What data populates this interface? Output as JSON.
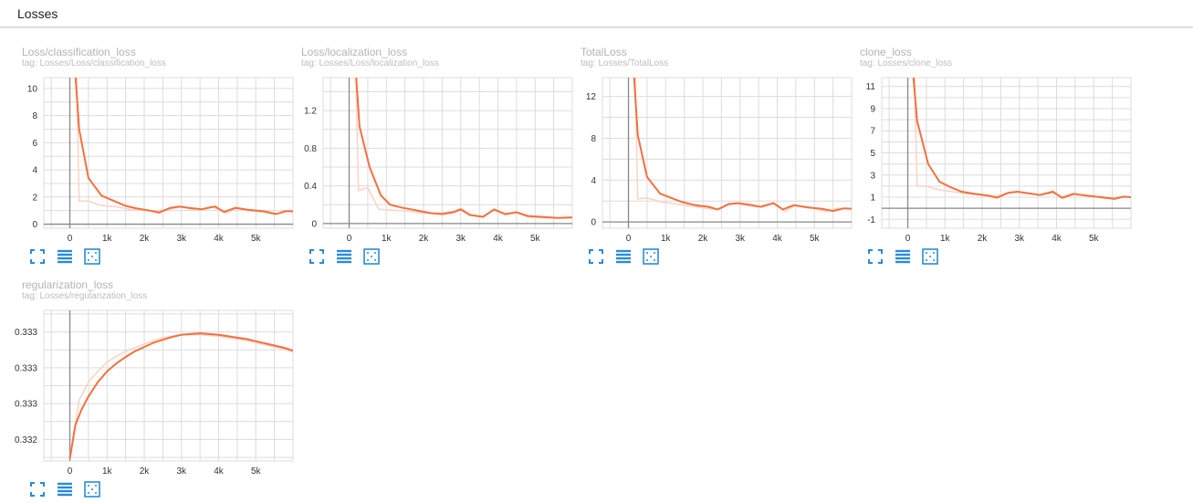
{
  "header": {
    "title": "Losses"
  },
  "colors": {
    "line": "#f4703d",
    "line_raw": "#fbd3c3",
    "grid": "#dcdcdc",
    "axis": "#888888",
    "icon": "#2a8ad8"
  },
  "icons": [
    "fit-domain-icon",
    "data-table-icon",
    "log-scale-icon"
  ],
  "cards": [
    {
      "title": "Loss/classification_loss",
      "tag": "tag: Losses/Loss/classification_loss",
      "chart_data": {
        "type": "line",
        "xlim": [
          -700,
          6000
        ],
        "ylim": [
          -0.3,
          10.8
        ],
        "xticks": [
          0,
          1000,
          2000,
          3000,
          4000,
          5000
        ],
        "xtick_labels": [
          "0",
          "1k",
          "2k",
          "3k",
          "4k",
          "5k"
        ],
        "yticks": [
          0,
          2,
          4,
          6,
          8,
          10
        ],
        "ytick_labels": [
          "0",
          "2",
          "4",
          "6",
          "8",
          "10"
        ],
        "raw": [
          [
            180,
            11
          ],
          [
            250,
            1.7
          ],
          [
            500,
            1.7
          ],
          [
            800,
            1.4
          ],
          [
            1200,
            1.3
          ],
          [
            1600,
            1.1
          ],
          [
            2000,
            1.0
          ],
          [
            2400,
            1.0
          ],
          [
            2700,
            1.1
          ],
          [
            3000,
            1.3
          ],
          [
            3400,
            1.0
          ],
          [
            3800,
            1.3
          ],
          [
            4200,
            0.8
          ],
          [
            4500,
            1.2
          ],
          [
            4800,
            1.0
          ],
          [
            5200,
            0.9
          ],
          [
            5500,
            0.7
          ],
          [
            5800,
            1.0
          ],
          [
            6000,
            1.0
          ]
        ],
        "smoothed": [
          [
            150,
            11
          ],
          [
            250,
            7.0
          ],
          [
            500,
            3.4
          ],
          [
            850,
            2.1
          ],
          [
            1200,
            1.7
          ],
          [
            1500,
            1.35
          ],
          [
            1800,
            1.15
          ],
          [
            2150,
            1.0
          ],
          [
            2400,
            0.85
          ],
          [
            2700,
            1.2
          ],
          [
            2950,
            1.3
          ],
          [
            3200,
            1.2
          ],
          [
            3550,
            1.1
          ],
          [
            3900,
            1.3
          ],
          [
            4150,
            0.9
          ],
          [
            4450,
            1.2
          ],
          [
            4800,
            1.05
          ],
          [
            5200,
            0.95
          ],
          [
            5550,
            0.75
          ],
          [
            5800,
            0.95
          ],
          [
            6000,
            0.95
          ]
        ]
      }
    },
    {
      "title": "Loss/localization_loss",
      "tag": "tag: Losses/Loss/localization_loss",
      "chart_data": {
        "type": "line",
        "xlim": [
          -700,
          6000
        ],
        "ylim": [
          -0.05,
          1.55
        ],
        "xticks": [
          0,
          1000,
          2000,
          3000,
          4000,
          5000
        ],
        "xtick_labels": [
          "0",
          "1k",
          "2k",
          "3k",
          "4k",
          "5k"
        ],
        "yticks": [
          0,
          0.4,
          0.8,
          1.2
        ],
        "ytick_labels": [
          "0",
          "0.4",
          "0.8",
          "1.2"
        ],
        "raw": [
          [
            180,
            1.6
          ],
          [
            250,
            0.35
          ],
          [
            500,
            0.38
          ],
          [
            800,
            0.15
          ],
          [
            1200,
            0.14
          ],
          [
            1600,
            0.13
          ],
          [
            2000,
            0.11
          ],
          [
            2400,
            0.11
          ],
          [
            2800,
            0.13
          ],
          [
            3000,
            0.16
          ],
          [
            3300,
            0.09
          ],
          [
            3600,
            0.08
          ],
          [
            3900,
            0.14
          ],
          [
            4200,
            0.09
          ],
          [
            4500,
            0.12
          ],
          [
            4800,
            0.07
          ],
          [
            5200,
            0.06
          ],
          [
            5600,
            0.06
          ],
          [
            6000,
            0.06
          ]
        ],
        "smoothed": [
          [
            180,
            1.6
          ],
          [
            280,
            1.03
          ],
          [
            550,
            0.6
          ],
          [
            850,
            0.3
          ],
          [
            1100,
            0.2
          ],
          [
            1400,
            0.17
          ],
          [
            1800,
            0.14
          ],
          [
            2200,
            0.11
          ],
          [
            2500,
            0.1
          ],
          [
            2800,
            0.12
          ],
          [
            3000,
            0.15
          ],
          [
            3250,
            0.09
          ],
          [
            3600,
            0.07
          ],
          [
            3900,
            0.15
          ],
          [
            4200,
            0.1
          ],
          [
            4500,
            0.12
          ],
          [
            4800,
            0.08
          ],
          [
            5200,
            0.07
          ],
          [
            5600,
            0.06
          ],
          [
            6000,
            0.065
          ]
        ]
      }
    },
    {
      "title": "TotalLoss",
      "tag": "tag: Losses/TotalLoss",
      "chart_data": {
        "type": "line",
        "xlim": [
          -700,
          6000
        ],
        "ylim": [
          -0.6,
          13.8
        ],
        "xticks": [
          0,
          1000,
          2000,
          3000,
          4000,
          5000
        ],
        "xtick_labels": [
          "0",
          "1k",
          "2k",
          "3k",
          "4k",
          "5k"
        ],
        "yticks": [
          0,
          4,
          8,
          12
        ],
        "ytick_labels": [
          "0",
          "4",
          "8",
          "12"
        ],
        "raw": [
          [
            180,
            14
          ],
          [
            250,
            2.2
          ],
          [
            500,
            2.3
          ],
          [
            900,
            1.9
          ],
          [
            1300,
            1.7
          ],
          [
            1700,
            1.5
          ],
          [
            2100,
            1.3
          ],
          [
            2400,
            1.2
          ],
          [
            2700,
            1.8
          ],
          [
            3000,
            1.7
          ],
          [
            3300,
            1.5
          ],
          [
            3600,
            1.4
          ],
          [
            3900,
            1.8
          ],
          [
            4200,
            1.0
          ],
          [
            4500,
            1.6
          ],
          [
            4900,
            1.4
          ],
          [
            5300,
            1.0
          ],
          [
            5600,
            1.3
          ],
          [
            6000,
            1.3
          ]
        ],
        "smoothed": [
          [
            150,
            14
          ],
          [
            250,
            8.3
          ],
          [
            500,
            4.3
          ],
          [
            850,
            2.7
          ],
          [
            1150,
            2.3
          ],
          [
            1450,
            1.9
          ],
          [
            1800,
            1.6
          ],
          [
            2150,
            1.45
          ],
          [
            2400,
            1.2
          ],
          [
            2700,
            1.7
          ],
          [
            2950,
            1.8
          ],
          [
            3250,
            1.65
          ],
          [
            3550,
            1.45
          ],
          [
            3900,
            1.8
          ],
          [
            4150,
            1.2
          ],
          [
            4450,
            1.6
          ],
          [
            4800,
            1.4
          ],
          [
            5200,
            1.25
          ],
          [
            5500,
            1.05
          ],
          [
            5800,
            1.3
          ],
          [
            6000,
            1.25
          ]
        ]
      }
    },
    {
      "title": "clone_loss",
      "tag": "tag: Losses/clone_loss",
      "chart_data": {
        "type": "line",
        "xlim": [
          -700,
          6000
        ],
        "ylim": [
          -1.8,
          11.8
        ],
        "xticks": [
          0,
          1000,
          2000,
          3000,
          4000,
          5000
        ],
        "xtick_labels": [
          "0",
          "1k",
          "2k",
          "3k",
          "4k",
          "5k"
        ],
        "yticks": [
          -1,
          1,
          3,
          5,
          7,
          9,
          11
        ],
        "ytick_labels": [
          "-1",
          "1",
          "3",
          "5",
          "7",
          "9",
          "11"
        ],
        "raw": [
          [
            180,
            12
          ],
          [
            250,
            2.0
          ],
          [
            500,
            2.0
          ],
          [
            800,
            1.7
          ],
          [
            1200,
            1.5
          ],
          [
            1600,
            1.3
          ],
          [
            2000,
            1.2
          ],
          [
            2400,
            1.1
          ],
          [
            2700,
            1.4
          ],
          [
            3000,
            1.5
          ],
          [
            3300,
            1.3
          ],
          [
            3600,
            1.2
          ],
          [
            3900,
            1.4
          ],
          [
            4200,
            0.9
          ],
          [
            4500,
            1.3
          ],
          [
            4900,
            1.1
          ],
          [
            5300,
            0.9
          ],
          [
            5600,
            1.0
          ],
          [
            6000,
            1.0
          ]
        ],
        "smoothed": [
          [
            150,
            12
          ],
          [
            250,
            7.9
          ],
          [
            550,
            4.0
          ],
          [
            850,
            2.4
          ],
          [
            1150,
            1.9
          ],
          [
            1450,
            1.5
          ],
          [
            1800,
            1.3
          ],
          [
            2150,
            1.15
          ],
          [
            2400,
            0.95
          ],
          [
            2700,
            1.4
          ],
          [
            2950,
            1.5
          ],
          [
            3250,
            1.35
          ],
          [
            3550,
            1.2
          ],
          [
            3900,
            1.5
          ],
          [
            4150,
            0.95
          ],
          [
            4450,
            1.3
          ],
          [
            4800,
            1.15
          ],
          [
            5200,
            1.0
          ],
          [
            5550,
            0.85
          ],
          [
            5800,
            1.05
          ],
          [
            6000,
            1.0
          ]
        ]
      }
    },
    {
      "title": "regularization_loss",
      "tag": "tag: Losses/regularization_loss",
      "chart_data": {
        "type": "line",
        "xlim": [
          -700,
          6000
        ],
        "ylim": [
          0.3317,
          0.3338
        ],
        "xticks": [
          0,
          1000,
          2000,
          3000,
          4000,
          5000
        ],
        "xtick_labels": [
          "0",
          "1k",
          "2k",
          "3k",
          "4k",
          "5k"
        ],
        "yticks": [
          0.332,
          0.3325,
          0.333,
          0.3335
        ],
        "ytick_labels": [
          "0.332",
          "0.333",
          "0.333",
          "0.333"
        ],
        "raw": [
          [
            0,
            0.33175
          ],
          [
            250,
            0.33255
          ],
          [
            500,
            0.3328
          ],
          [
            750,
            0.33295
          ],
          [
            1000,
            0.33308
          ],
          [
            1250,
            0.33316
          ],
          [
            1500,
            0.33323
          ],
          [
            1750,
            0.33328
          ],
          [
            2000,
            0.33333
          ],
          [
            2250,
            0.33338
          ],
          [
            2500,
            0.33342
          ],
          [
            2750,
            0.33344
          ],
          [
            3000,
            0.33346
          ],
          [
            3250,
            0.33346
          ],
          [
            3500,
            0.33346
          ],
          [
            3750,
            0.33345
          ],
          [
            4000,
            0.33344
          ],
          [
            4250,
            0.33342
          ],
          [
            4500,
            0.3334
          ],
          [
            4750,
            0.33338
          ],
          [
            5000,
            0.33335
          ],
          [
            5250,
            0.33332
          ],
          [
            5500,
            0.33329
          ],
          [
            5750,
            0.33326
          ],
          [
            6000,
            0.33322
          ]
        ],
        "smoothed": [
          [
            0,
            0.33173
          ],
          [
            150,
            0.3322
          ],
          [
            300,
            0.3324
          ],
          [
            500,
            0.3326
          ],
          [
            750,
            0.3328
          ],
          [
            1000,
            0.33295
          ],
          [
            1250,
            0.33306
          ],
          [
            1500,
            0.33315
          ],
          [
            1750,
            0.33323
          ],
          [
            2000,
            0.33329
          ],
          [
            2250,
            0.33335
          ],
          [
            2500,
            0.33339
          ],
          [
            2750,
            0.33343
          ],
          [
            3000,
            0.33346
          ],
          [
            3250,
            0.33347
          ],
          [
            3500,
            0.33348
          ],
          [
            3750,
            0.33347
          ],
          [
            4000,
            0.33346
          ],
          [
            4250,
            0.33344
          ],
          [
            4500,
            0.33342
          ],
          [
            4750,
            0.3334
          ],
          [
            5000,
            0.33337
          ],
          [
            5250,
            0.33334
          ],
          [
            5500,
            0.33331
          ],
          [
            5750,
            0.33328
          ],
          [
            6000,
            0.33324
          ]
        ]
      }
    }
  ]
}
